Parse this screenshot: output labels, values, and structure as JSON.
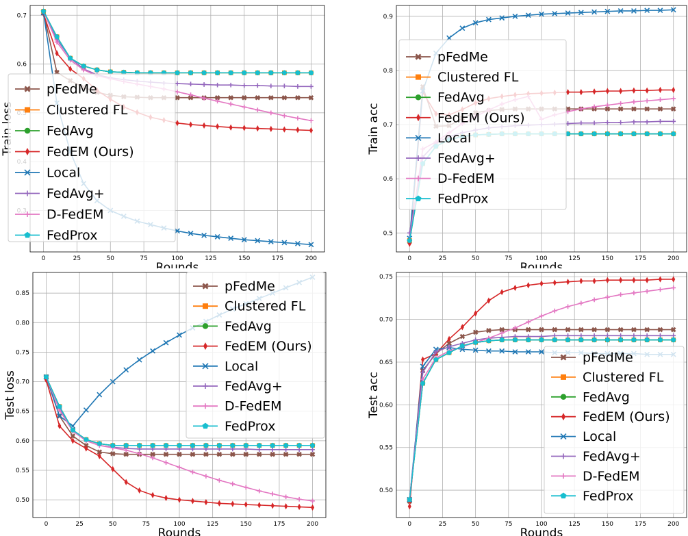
{
  "chart_data": [
    {
      "type": "line",
      "xlabel": "Rounds",
      "ylabel": "Train loss",
      "xlim": [
        -10,
        210
      ],
      "ylim": [
        0.215,
        0.72
      ],
      "xticks": [
        0,
        25,
        50,
        75,
        100,
        125,
        150,
        175,
        200
      ],
      "yticks": [
        0.3,
        0.4,
        0.5,
        0.6,
        0.7
      ],
      "ytick_labels": [
        "0.3",
        "0.4",
        "0.5",
        "0.6",
        "0.7"
      ],
      "grid": true,
      "legend_location": "left",
      "legend": [
        "pFedMe",
        "Clustered FL",
        "FedAvg",
        "FedEM (Ours)",
        "Local",
        "FedAvg+",
        "D-FedEM",
        "FedProx"
      ],
      "x": [
        0,
        10,
        20,
        30,
        40,
        50,
        60,
        70,
        80,
        90,
        100,
        110,
        120,
        130,
        140,
        150,
        160,
        170,
        180,
        190,
        200
      ],
      "series": [
        {
          "values": [
            0.705,
            0.583,
            0.566,
            0.552,
            0.542,
            0.536,
            0.533,
            0.532,
            0.531,
            0.531,
            0.531,
            0.531,
            0.531,
            0.531,
            0.531,
            0.531,
            0.531,
            0.531,
            0.531,
            0.531,
            0.531
          ]
        },
        {
          "values": [
            0.708,
            0.656,
            0.612,
            0.596,
            0.588,
            0.584,
            0.583,
            0.582,
            0.582,
            0.582,
            0.582,
            0.582,
            0.582,
            0.582,
            0.582,
            0.582,
            0.582,
            0.582,
            0.582,
            0.582,
            0.582
          ]
        },
        {
          "values": [
            0.708,
            0.656,
            0.612,
            0.596,
            0.588,
            0.584,
            0.583,
            0.582,
            0.582,
            0.582,
            0.582,
            0.582,
            0.582,
            0.582,
            0.582,
            0.582,
            0.582,
            0.582,
            0.582,
            0.582,
            0.582
          ]
        },
        {
          "values": [
            0.703,
            0.622,
            0.59,
            0.57,
            0.546,
            0.528,
            0.512,
            0.501,
            0.491,
            0.485,
            0.479,
            0.476,
            0.474,
            0.472,
            0.47,
            0.469,
            0.468,
            0.467,
            0.466,
            0.465,
            0.464
          ]
        },
        {
          "values": [
            0.705,
            0.52,
            0.42,
            0.355,
            0.32,
            0.3,
            0.288,
            0.278,
            0.271,
            0.264,
            0.258,
            0.253,
            0.249,
            0.246,
            0.243,
            0.24,
            0.238,
            0.236,
            0.234,
            0.232,
            0.23
          ]
        },
        {
          "values": [
            0.708,
            0.65,
            0.612,
            0.59,
            0.578,
            0.572,
            0.568,
            0.565,
            0.563,
            0.561,
            0.56,
            0.559,
            0.558,
            0.557,
            0.557,
            0.556,
            0.556,
            0.555,
            0.555,
            0.554,
            0.554
          ]
        },
        {
          "values": [
            0.708,
            0.645,
            0.608,
            0.588,
            0.576,
            0.57,
            0.564,
            0.559,
            0.554,
            0.549,
            0.543,
            0.537,
            0.53,
            0.524,
            0.518,
            0.512,
            0.506,
            0.5,
            0.494,
            0.489,
            0.484
          ]
        },
        {
          "values": [
            0.708,
            0.656,
            0.612,
            0.596,
            0.588,
            0.584,
            0.583,
            0.582,
            0.582,
            0.582,
            0.582,
            0.582,
            0.582,
            0.582,
            0.582,
            0.582,
            0.582,
            0.582,
            0.582,
            0.582,
            0.582
          ]
        }
      ]
    },
    {
      "type": "line",
      "xlabel": "Rounds",
      "ylabel": "Train acc",
      "xlim": [
        -10,
        210
      ],
      "ylim": [
        0.465,
        0.92
      ],
      "xticks": [
        0,
        25,
        50,
        75,
        100,
        125,
        150,
        175,
        200
      ],
      "yticks": [
        0.5,
        0.6,
        0.7,
        0.8,
        0.9
      ],
      "ytick_labels": [
        "0.5",
        "0.6",
        "0.7",
        "0.8",
        "0.9"
      ],
      "grid": true,
      "legend_location": "left",
      "legend": [
        "pFedMe",
        "Clustered FL",
        "FedAvg",
        "FedEM (Ours)",
        "Local",
        "FedAvg+",
        "D-FedEM",
        "FedProx"
      ],
      "x": [
        0,
        10,
        20,
        30,
        40,
        50,
        60,
        70,
        80,
        90,
        100,
        110,
        120,
        130,
        140,
        150,
        160,
        170,
        180,
        190,
        200
      ],
      "series": [
        {
          "values": [
            0.484,
            0.77,
            0.697,
            0.698,
            0.712,
            0.722,
            0.726,
            0.728,
            0.729,
            0.729,
            0.729,
            0.729,
            0.729,
            0.729,
            0.729,
            0.729,
            0.729,
            0.729,
            0.729,
            0.729,
            0.729
          ]
        },
        {
          "values": [
            0.486,
            0.628,
            0.66,
            0.672,
            0.678,
            0.681,
            0.682,
            0.683,
            0.683,
            0.683,
            0.683,
            0.683,
            0.683,
            0.683,
            0.683,
            0.683,
            0.683,
            0.683,
            0.683,
            0.683,
            0.683
          ]
        },
        {
          "values": [
            0.486,
            0.628,
            0.66,
            0.672,
            0.678,
            0.681,
            0.682,
            0.683,
            0.683,
            0.683,
            0.683,
            0.683,
            0.683,
            0.683,
            0.683,
            0.683,
            0.683,
            0.683,
            0.683,
            0.683,
            0.683
          ]
        },
        {
          "values": [
            0.48,
            0.76,
            0.72,
            0.718,
            0.728,
            0.74,
            0.748,
            0.752,
            0.755,
            0.757,
            0.758,
            0.759,
            0.76,
            0.76,
            0.761,
            0.762,
            0.762,
            0.763,
            0.763,
            0.764,
            0.764
          ]
        },
        {
          "values": [
            0.49,
            0.762,
            0.832,
            0.86,
            0.878,
            0.888,
            0.894,
            0.897,
            0.9,
            0.902,
            0.904,
            0.905,
            0.906,
            0.907,
            0.908,
            0.909,
            0.91,
            0.91,
            0.911,
            0.911,
            0.912
          ]
        },
        {
          "values": [
            0.5,
            0.64,
            0.666,
            0.678,
            0.685,
            0.69,
            0.694,
            0.696,
            0.698,
            0.699,
            0.7,
            0.701,
            0.702,
            0.703,
            0.703,
            0.704,
            0.704,
            0.705,
            0.705,
            0.706,
            0.706
          ]
        },
        {
          "values": [
            0.486,
            0.655,
            0.668,
            0.685,
            0.702,
            0.715,
            0.727,
            0.738,
            0.746,
            0.752,
            0.71,
            0.718,
            0.724,
            0.729,
            0.733,
            0.736,
            0.739,
            0.742,
            0.744,
            0.746,
            0.748
          ]
        },
        {
          "values": [
            0.486,
            0.628,
            0.66,
            0.672,
            0.678,
            0.681,
            0.682,
            0.683,
            0.683,
            0.683,
            0.683,
            0.683,
            0.683,
            0.683,
            0.683,
            0.683,
            0.683,
            0.683,
            0.683,
            0.683,
            0.683
          ]
        }
      ]
    },
    {
      "type": "line",
      "xlabel": "Rounds",
      "ylabel": "Test loss",
      "xlim": [
        -10,
        210
      ],
      "ylim": [
        0.47,
        0.885
      ],
      "xticks": [
        0,
        25,
        50,
        75,
        100,
        125,
        150,
        175,
        200
      ],
      "yticks": [
        0.5,
        0.55,
        0.6,
        0.65,
        0.7,
        0.75,
        0.8,
        0.85
      ],
      "ytick_labels": [
        "0.50",
        "0.55",
        "0.60",
        "0.65",
        "0.70",
        "0.75",
        "0.80",
        "0.85"
      ],
      "grid": true,
      "legend_location": "upper right",
      "legend": [
        "pFedMe",
        "Clustered FL",
        "FedAvg",
        "FedEM (Ours)",
        "Local",
        "FedAvg+",
        "D-FedEM",
        "FedProx"
      ],
      "x": [
        0,
        10,
        20,
        30,
        40,
        50,
        60,
        70,
        80,
        90,
        100,
        110,
        120,
        130,
        140,
        150,
        160,
        170,
        180,
        190,
        200
      ],
      "series": [
        {
          "values": [
            0.708,
            0.642,
            0.608,
            0.592,
            0.581,
            0.578,
            0.577,
            0.577,
            0.577,
            0.577,
            0.577,
            0.577,
            0.577,
            0.577,
            0.577,
            0.577,
            0.577,
            0.577,
            0.577,
            0.577,
            0.577
          ]
        },
        {
          "values": [
            0.708,
            0.658,
            0.618,
            0.602,
            0.595,
            0.592,
            0.592,
            0.592,
            0.592,
            0.592,
            0.592,
            0.592,
            0.592,
            0.592,
            0.592,
            0.592,
            0.592,
            0.592,
            0.592,
            0.592,
            0.592
          ]
        },
        {
          "values": [
            0.708,
            0.658,
            0.618,
            0.602,
            0.595,
            0.592,
            0.592,
            0.592,
            0.592,
            0.592,
            0.592,
            0.592,
            0.592,
            0.592,
            0.592,
            0.592,
            0.592,
            0.592,
            0.592,
            0.592,
            0.592
          ]
        },
        {
          "values": [
            0.703,
            0.625,
            0.6,
            0.587,
            0.574,
            0.552,
            0.53,
            0.516,
            0.508,
            0.503,
            0.5,
            0.498,
            0.496,
            0.494,
            0.493,
            0.492,
            0.491,
            0.49,
            0.489,
            0.488,
            0.487
          ]
        },
        {
          "values": [
            0.708,
            0.642,
            0.625,
            0.652,
            0.678,
            0.7,
            0.72,
            0.737,
            0.752,
            0.766,
            0.779,
            0.791,
            0.802,
            0.813,
            0.823,
            0.832,
            0.841,
            0.85,
            0.859,
            0.868,
            0.877
          ]
        },
        {
          "values": [
            0.708,
            0.655,
            0.618,
            0.6,
            0.592,
            0.589,
            0.587,
            0.586,
            0.586,
            0.586,
            0.586,
            0.586,
            0.586,
            0.586,
            0.586,
            0.586,
            0.585,
            0.585,
            0.585,
            0.585,
            0.585
          ]
        },
        {
          "values": [
            0.708,
            0.652,
            0.616,
            0.6,
            0.592,
            0.588,
            0.584,
            0.578,
            0.571,
            0.563,
            0.555,
            0.547,
            0.54,
            0.533,
            0.527,
            0.521,
            0.515,
            0.51,
            0.505,
            0.501,
            0.498
          ]
        },
        {
          "values": [
            0.708,
            0.658,
            0.618,
            0.602,
            0.595,
            0.592,
            0.592,
            0.592,
            0.592,
            0.592,
            0.592,
            0.592,
            0.592,
            0.592,
            0.592,
            0.592,
            0.592,
            0.592,
            0.592,
            0.592,
            0.592
          ]
        }
      ]
    },
    {
      "type": "line",
      "xlabel": "Rounds",
      "ylabel": "Test acc",
      "xlim": [
        -10,
        210
      ],
      "ylim": [
        0.468,
        0.755
      ],
      "xticks": [
        0,
        25,
        50,
        75,
        100,
        125,
        150,
        175,
        200
      ],
      "yticks": [
        0.5,
        0.55,
        0.6,
        0.65,
        0.7,
        0.75
      ],
      "ytick_labels": [
        "0.50",
        "0.55",
        "0.60",
        "0.65",
        "0.70",
        "0.75"
      ],
      "grid": true,
      "legend_location": "lower right",
      "legend": [
        "pFedMe",
        "Clustered FL",
        "FedAvg",
        "FedEM (Ours)",
        "Local",
        "FedAvg+",
        "D-FedEM",
        "FedProx"
      ],
      "x": [
        0,
        10,
        20,
        30,
        40,
        50,
        60,
        70,
        80,
        90,
        100,
        110,
        120,
        130,
        140,
        150,
        160,
        170,
        180,
        190,
        200
      ],
      "series": [
        {
          "values": [
            0.487,
            0.64,
            0.66,
            0.672,
            0.68,
            0.685,
            0.687,
            0.688,
            0.688,
            0.688,
            0.688,
            0.688,
            0.688,
            0.688,
            0.688,
            0.688,
            0.688,
            0.688,
            0.688,
            0.688,
            0.688
          ]
        },
        {
          "values": [
            0.489,
            0.625,
            0.653,
            0.661,
            0.669,
            0.673,
            0.675,
            0.676,
            0.676,
            0.676,
            0.676,
            0.676,
            0.676,
            0.676,
            0.676,
            0.676,
            0.676,
            0.676,
            0.676,
            0.676,
            0.676
          ]
        },
        {
          "values": [
            0.489,
            0.625,
            0.653,
            0.661,
            0.669,
            0.673,
            0.675,
            0.676,
            0.676,
            0.676,
            0.676,
            0.676,
            0.676,
            0.676,
            0.676,
            0.676,
            0.676,
            0.676,
            0.676,
            0.676,
            0.676
          ]
        },
        {
          "values": [
            0.481,
            0.653,
            0.66,
            0.677,
            0.691,
            0.707,
            0.722,
            0.732,
            0.737,
            0.74,
            0.742,
            0.743,
            0.744,
            0.745,
            0.745,
            0.746,
            0.746,
            0.746,
            0.746,
            0.747,
            0.747
          ]
        },
        {
          "values": [
            0.489,
            0.645,
            0.665,
            0.667,
            0.665,
            0.664,
            0.663,
            0.663,
            0.662,
            0.662,
            0.662,
            0.661,
            0.661,
            0.661,
            0.66,
            0.66,
            0.66,
            0.66,
            0.659,
            0.659,
            0.659
          ]
        },
        {
          "values": [
            0.489,
            0.638,
            0.662,
            0.668,
            0.672,
            0.676,
            0.678,
            0.679,
            0.68,
            0.68,
            0.68,
            0.681,
            0.681,
            0.681,
            0.681,
            0.681,
            0.681,
            0.681,
            0.681,
            0.681,
            0.681
          ]
        },
        {
          "values": [
            0.489,
            0.63,
            0.655,
            0.663,
            0.668,
            0.673,
            0.678,
            0.684,
            0.69,
            0.697,
            0.704,
            0.71,
            0.715,
            0.719,
            0.723,
            0.726,
            0.729,
            0.731,
            0.733,
            0.735,
            0.737
          ]
        },
        {
          "values": [
            0.489,
            0.625,
            0.653,
            0.661,
            0.669,
            0.673,
            0.675,
            0.676,
            0.676,
            0.676,
            0.676,
            0.676,
            0.676,
            0.676,
            0.676,
            0.676,
            0.676,
            0.676,
            0.676,
            0.676,
            0.676
          ]
        }
      ]
    }
  ],
  "series_styles": [
    {
      "color": "#8c564b",
      "marker": "X"
    },
    {
      "color": "#ff7f0e",
      "marker": "square"
    },
    {
      "color": "#2ca02c",
      "marker": "circle"
    },
    {
      "color": "#d62728",
      "marker": "diamond"
    },
    {
      "color": "#1f77b4",
      "marker": "x"
    },
    {
      "color": "#9467bd",
      "marker": "plus"
    },
    {
      "color": "#e377c2",
      "marker": "plus"
    },
    {
      "color": "#17becf",
      "marker": "pentagon"
    }
  ]
}
